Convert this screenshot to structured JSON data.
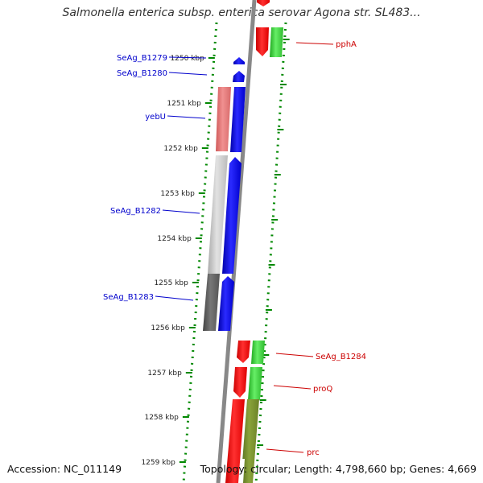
{
  "title": "Salmonella enterica subsp. enterica serovar Agona str. SL483...",
  "footer": {
    "accession": "Accession: NC_011149",
    "summary": "Topology: circular; Length: 4,798,660 bp; Genes: 4,669"
  },
  "ticks": [
    "1250 kbp",
    "1251 kbp",
    "1252 kbp",
    "1253 kbp",
    "1254 kbp",
    "1255 kbp",
    "1256 kbp",
    "1257 kbp",
    "1258 kbp",
    "1259 kbp"
  ],
  "left_genes": [
    "SeAg_B1279",
    "SeAg_B1280",
    "yebU",
    "SeAg_B1282",
    "SeAg_B1283"
  ],
  "right_genes": [
    "pphA",
    "SeAg_B1284",
    "proQ",
    "prc"
  ],
  "colors": {
    "forward_strand": "#0000ff",
    "reverse_strand_red": "#ff0000",
    "cds_green": "#33cc33",
    "ruler_dots": "#008800",
    "backbone": "#888888",
    "label_blue": "#0000cc",
    "label_red": "#cc0000"
  }
}
